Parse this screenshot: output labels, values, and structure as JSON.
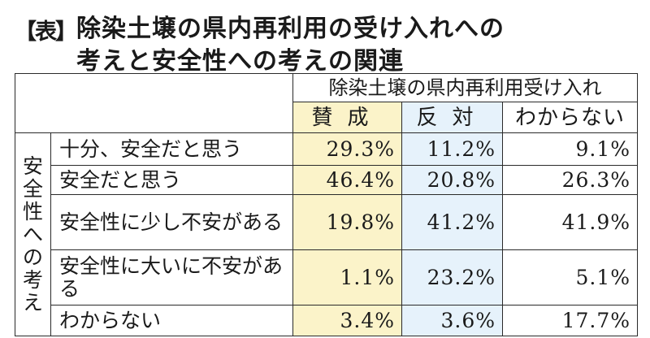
{
  "title": {
    "badge": "【表】",
    "line1": "除染土壌の県内再利用の受け入れへの",
    "line2": "考えと安全性への考えの関連"
  },
  "table": {
    "group_header": "除染土壌の県内再利用受け入れ",
    "columns": [
      "賛成",
      "反対",
      "わからない"
    ],
    "row_group_label": "安全性への考え",
    "rows": [
      {
        "label": "十分、安全だと思う",
        "values": [
          "29.3%",
          "11.2%",
          "9.1%"
        ]
      },
      {
        "label": "安全だと思う",
        "values": [
          "46.4%",
          "20.8%",
          "26.3%"
        ]
      },
      {
        "label": "安全性に少し不安がある",
        "values": [
          "19.8%",
          "41.2%",
          "41.9%"
        ]
      },
      {
        "label": "安全性に大いに不安がある",
        "values": [
          "1.1%",
          "23.2%",
          "5.1%"
        ]
      },
      {
        "label": "わからない",
        "values": [
          "3.4%",
          "3.6%",
          "17.7%"
        ]
      }
    ]
  },
  "colors": {
    "agree_column": "#fbf3c9",
    "oppose_column": "#e6f2fb",
    "border": "#2a2a2a"
  }
}
